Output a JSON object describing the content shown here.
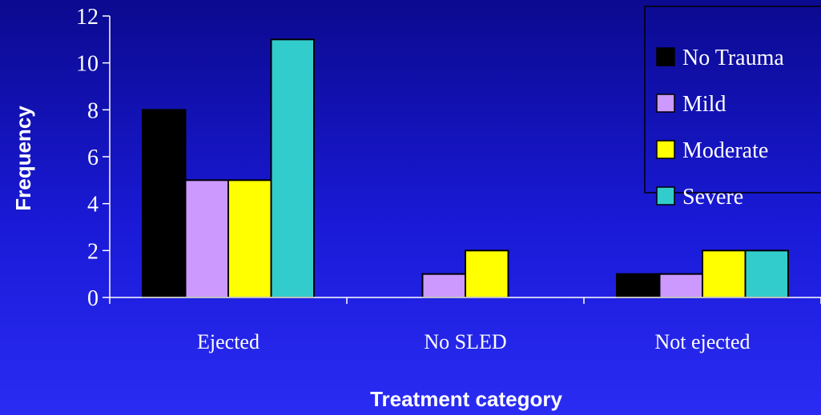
{
  "chart_data": {
    "type": "bar",
    "categories": [
      "Ejected",
      "No SLED",
      "Not ejected"
    ],
    "series": [
      {
        "name": "No Trauma",
        "color": "#000000",
        "values": [
          8,
          0,
          1
        ]
      },
      {
        "name": "Mild",
        "color": "#cc99ff",
        "values": [
          5,
          1,
          1
        ]
      },
      {
        "name": "Moderate",
        "color": "#ffff00",
        "values": [
          5,
          2,
          2
        ]
      },
      {
        "name": "Severe",
        "color": "#33cccc",
        "values": [
          11,
          0,
          2
        ]
      }
    ],
    "xlabel": "Treatment category",
    "ylabel": "Frequency",
    "ylim": [
      0,
      12
    ],
    "yticks": [
      0,
      2,
      4,
      6,
      8,
      10,
      12
    ],
    "grid": false,
    "legend_position": "top-right"
  }
}
